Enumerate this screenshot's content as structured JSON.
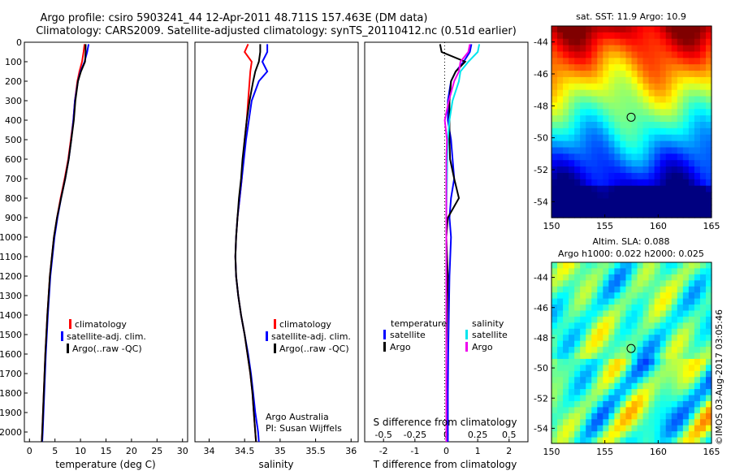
{
  "header": {
    "title_line1": "Argo profile: csiro 5903241_44 12-Apr-2011 48.711S 157.463E (DM data)",
    "title_line2": "Climatology: CARS2009. Satellite-adjusted climatology: synTS_20110412.nc (0.51d earlier)"
  },
  "colors": {
    "climatology": "#ff0000",
    "satellite": "#0000ff",
    "argo": "#000000",
    "sal_satellite": "#00e5ee",
    "sal_argo": "#ee00ee"
  },
  "depth_axis": {
    "ticks": [
      0,
      100,
      200,
      300,
      400,
      500,
      600,
      700,
      800,
      900,
      1000,
      1100,
      1200,
      1300,
      1400,
      1500,
      1600,
      1700,
      1800,
      1900,
      2000
    ],
    "range": [
      0,
      2050
    ],
    "reversed": true
  },
  "chart_data": [
    {
      "type": "line",
      "panel": "temperature",
      "xlabel": "temperature (deg C)",
      "xlim": [
        -1,
        31
      ],
      "xticks": [
        0,
        5,
        10,
        15,
        20,
        25,
        30
      ],
      "legend": [
        "climatology",
        "satellite-adj. clim.",
        "Argo(..raw -QC)"
      ],
      "depth": [
        10,
        50,
        100,
        150,
        200,
        300,
        400,
        500,
        600,
        700,
        800,
        900,
        1000,
        1200,
        1400,
        1600,
        1800,
        2000,
        2050
      ],
      "series": [
        {
          "name": "climatology",
          "color": "#ff0000",
          "values": [
            10.8,
            10.6,
            10.3,
            9.8,
            9.4,
            8.9,
            8.6,
            8.1,
            7.6,
            6.9,
            6.1,
            5.4,
            4.8,
            4.0,
            3.5,
            3.1,
            2.8,
            2.5,
            2.4
          ]
        },
        {
          "name": "satellite-adj. clim.",
          "color": "#0000ff",
          "values": [
            11.6,
            11.3,
            10.8,
            10.0,
            9.5,
            8.9,
            8.6,
            8.2,
            7.7,
            7.0,
            6.2,
            5.5,
            4.9,
            4.1,
            3.6,
            3.2,
            2.9,
            2.6,
            2.5
          ]
        },
        {
          "name": "Argo(..raw -QC)",
          "color": "#000000",
          "values": [
            11.0,
            11.0,
            10.9,
            10.1,
            9.5,
            9.0,
            8.7,
            8.2,
            7.7,
            7.0,
            6.2,
            5.4,
            4.8,
            4.0,
            3.5,
            3.1,
            2.8,
            2.5,
            2.4
          ]
        }
      ]
    },
    {
      "type": "line",
      "panel": "salinity",
      "xlabel": "salinity",
      "xlim": [
        33.8,
        36.1
      ],
      "xticks": [
        34,
        34.5,
        35,
        35.5,
        36
      ],
      "legend": [
        "climatology",
        "satellite-adj. clim.",
        "Argo(..raw -QC)"
      ],
      "annotation": [
        "Argo Australia",
        "PI: Susan Wijffels"
      ],
      "depth": [
        10,
        50,
        100,
        150,
        200,
        300,
        400,
        500,
        600,
        700,
        800,
        900,
        1000,
        1100,
        1200,
        1300,
        1400,
        1500,
        1600,
        1700,
        1800,
        1900,
        2000,
        2050
      ],
      "series": [
        {
          "name": "climatology",
          "color": "#ff0000",
          "values": [
            34.55,
            34.5,
            34.6,
            34.58,
            34.57,
            34.55,
            34.53,
            34.5,
            34.48,
            34.46,
            34.43,
            34.4,
            34.38,
            34.37,
            34.38,
            34.41,
            34.45,
            34.5,
            34.54,
            34.58,
            34.61,
            34.63,
            34.65,
            34.66
          ]
        },
        {
          "name": "satellite-adj. clim.",
          "color": "#0000ff",
          "values": [
            34.82,
            34.82,
            34.75,
            34.82,
            34.7,
            34.6,
            34.56,
            34.52,
            34.49,
            34.46,
            34.43,
            34.4,
            34.38,
            34.37,
            34.38,
            34.41,
            34.45,
            34.5,
            34.55,
            34.59,
            34.62,
            34.65,
            34.69,
            34.7
          ]
        },
        {
          "name": "Argo(..raw -QC)",
          "color": "#000000",
          "values": [
            34.72,
            34.72,
            34.7,
            34.65,
            34.62,
            34.57,
            34.53,
            34.5,
            34.47,
            34.45,
            34.42,
            34.4,
            34.38,
            34.37,
            34.38,
            34.41,
            34.45,
            34.5,
            34.54,
            34.58,
            34.61,
            34.63,
            34.65,
            34.66
          ]
        }
      ]
    },
    {
      "type": "line",
      "panel": "difference",
      "xlabel": "T difference from climatology",
      "x2label": "S difference from climatology",
      "xlim": [
        -2.6,
        2.6
      ],
      "xticks": [
        -2,
        -1,
        0,
        1,
        2
      ],
      "x2ticks": [
        -0.5,
        -0.25,
        0,
        0.25,
        0.5
      ],
      "legend": {
        "temperature": [
          "satellite",
          "Argo"
        ],
        "salinity": [
          "satellite",
          "Argo"
        ]
      },
      "depth": [
        10,
        50,
        100,
        150,
        200,
        300,
        400,
        500,
        600,
        700,
        800,
        900,
        1000,
        1200,
        1400,
        1600,
        1800,
        2000,
        2050
      ],
      "series": [
        {
          "name": "temperature satellite",
          "color": "#0000ff",
          "values": [
            0.8,
            0.75,
            0.55,
            0.3,
            0.15,
            0.05,
            0.05,
            0.15,
            0.2,
            0.25,
            0.15,
            0.1,
            0.15,
            0.1,
            0.08,
            0.06,
            0.05,
            0.05,
            0.05
          ]
        },
        {
          "name": "temperature Argo",
          "color": "#000000",
          "values": [
            -0.2,
            -0.15,
            0.6,
            0.3,
            0.15,
            0.1,
            0.1,
            0.1,
            0.12,
            0.25,
            0.4,
            0.05,
            0.0,
            0.05,
            0.02,
            0.0,
            0.0,
            0.0,
            0.0
          ]
        },
        {
          "name": "salinity satellite",
          "color": "#00e5ee",
          "values": [
            1.05,
            1.0,
            0.7,
            0.45,
            0.4,
            0.2,
            0.1,
            0.05,
            0.03,
            0.02,
            0.01,
            0.0,
            0.0,
            0.0,
            0.0,
            0.0,
            0.0,
            0.0,
            0.0
          ]
        },
        {
          "name": "salinity Argo",
          "color": "#ee00ee",
          "values": [
            0.75,
            0.7,
            0.45,
            0.4,
            0.25,
            0.08,
            -0.05,
            0.02,
            0.0,
            0.0,
            0.0,
            0.0,
            0.0,
            0.0,
            0.0,
            0.0,
            0.0,
            0.0,
            0.0
          ]
        }
      ]
    },
    {
      "type": "heatmap",
      "panel": "sst_map",
      "title": "sat. SST: 11.9 Argo: 10.9",
      "xlim": [
        150,
        165
      ],
      "ylim": [
        -55,
        -43
      ],
      "xticks": [
        150,
        155,
        160,
        165
      ],
      "yticks": [
        -44,
        -46,
        -48,
        -50,
        -52,
        -54
      ],
      "marker": {
        "lon": 157.463,
        "lat": -48.711
      }
    },
    {
      "type": "heatmap",
      "panel": "sla_map",
      "title": [
        "Altim. SLA: 0.088",
        "Argo h1000: 0.022 h2000: 0.025"
      ],
      "xlim": [
        150,
        165
      ],
      "ylim": [
        -55,
        -43
      ],
      "xticks": [
        150,
        155,
        160,
        165
      ],
      "yticks": [
        -44,
        -46,
        -48,
        -50,
        -52,
        -54
      ],
      "marker": {
        "lon": 157.463,
        "lat": -48.711
      }
    }
  ],
  "footer_text": "©IMOS 03-Aug-2017 03:05:46"
}
